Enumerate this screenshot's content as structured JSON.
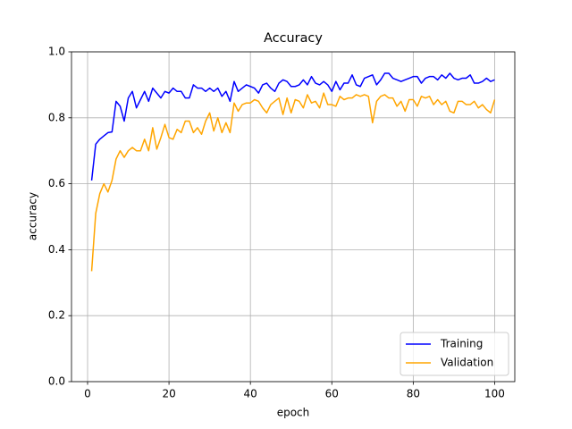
{
  "chart_data": {
    "type": "line",
    "title": "Accuracy",
    "xlabel": "epoch",
    "ylabel": "accuracy",
    "x": [
      1,
      2,
      3,
      4,
      5,
      6,
      7,
      8,
      9,
      10,
      11,
      12,
      13,
      14,
      15,
      16,
      17,
      18,
      19,
      20,
      21,
      22,
      23,
      24,
      25,
      26,
      27,
      28,
      29,
      30,
      31,
      32,
      33,
      34,
      35,
      36,
      37,
      38,
      39,
      40,
      41,
      42,
      43,
      44,
      45,
      46,
      47,
      48,
      49,
      50,
      51,
      52,
      53,
      54,
      55,
      56,
      57,
      58,
      59,
      60,
      61,
      62,
      63,
      64,
      65,
      66,
      67,
      68,
      69,
      70,
      71,
      72,
      73,
      74,
      75,
      76,
      77,
      78,
      79,
      80,
      81,
      82,
      83,
      84,
      85,
      86,
      87,
      88,
      89,
      90,
      91,
      92,
      93,
      94,
      95,
      96,
      97,
      98,
      99,
      100
    ],
    "series": [
      {
        "name": "Training",
        "color": "#0000ff",
        "values": [
          0.61,
          0.72,
          0.735,
          0.745,
          0.755,
          0.757,
          0.85,
          0.835,
          0.79,
          0.86,
          0.88,
          0.83,
          0.855,
          0.88,
          0.85,
          0.89,
          0.875,
          0.86,
          0.88,
          0.875,
          0.89,
          0.88,
          0.88,
          0.86,
          0.86,
          0.9,
          0.89,
          0.89,
          0.88,
          0.89,
          0.88,
          0.89,
          0.865,
          0.88,
          0.85,
          0.91,
          0.88,
          0.89,
          0.9,
          0.895,
          0.89,
          0.875,
          0.9,
          0.905,
          0.89,
          0.88,
          0.905,
          0.915,
          0.91,
          0.895,
          0.895,
          0.9,
          0.915,
          0.9,
          0.925,
          0.905,
          0.9,
          0.91,
          0.9,
          0.88,
          0.91,
          0.885,
          0.905,
          0.905,
          0.93,
          0.9,
          0.895,
          0.92,
          0.925,
          0.93,
          0.9,
          0.915,
          0.935,
          0.935,
          0.92,
          0.915,
          0.91,
          0.915,
          0.92,
          0.925,
          0.925,
          0.905,
          0.92,
          0.925,
          0.925,
          0.915,
          0.93,
          0.92,
          0.935,
          0.92,
          0.915,
          0.92,
          0.92,
          0.93,
          0.905,
          0.905,
          0.91,
          0.92,
          0.91,
          0.915
        ]
      },
      {
        "name": "Validation",
        "color": "#ffa500",
        "values": [
          0.335,
          0.51,
          0.57,
          0.6,
          0.575,
          0.61,
          0.675,
          0.7,
          0.68,
          0.7,
          0.71,
          0.7,
          0.7,
          0.735,
          0.7,
          0.77,
          0.705,
          0.74,
          0.78,
          0.74,
          0.735,
          0.765,
          0.755,
          0.79,
          0.79,
          0.755,
          0.77,
          0.75,
          0.79,
          0.815,
          0.76,
          0.8,
          0.755,
          0.785,
          0.755,
          0.845,
          0.82,
          0.84,
          0.845,
          0.845,
          0.855,
          0.85,
          0.83,
          0.815,
          0.84,
          0.85,
          0.86,
          0.81,
          0.86,
          0.815,
          0.855,
          0.85,
          0.83,
          0.87,
          0.845,
          0.85,
          0.83,
          0.875,
          0.84,
          0.84,
          0.835,
          0.865,
          0.855,
          0.86,
          0.86,
          0.87,
          0.865,
          0.87,
          0.865,
          0.785,
          0.85,
          0.865,
          0.87,
          0.86,
          0.86,
          0.835,
          0.85,
          0.82,
          0.855,
          0.855,
          0.835,
          0.865,
          0.86,
          0.865,
          0.84,
          0.855,
          0.84,
          0.85,
          0.82,
          0.815,
          0.85,
          0.85,
          0.84,
          0.84,
          0.85,
          0.83,
          0.84,
          0.825,
          0.815,
          0.855
        ]
      }
    ],
    "xlim": [
      -3.95,
      104.95
    ],
    "ylim": [
      0,
      1
    ],
    "xticks": [
      0,
      20,
      40,
      60,
      80,
      100
    ],
    "yticks": [
      {
        "value": 0,
        "label": "0.0"
      },
      0.2,
      0.4,
      0.6,
      0.8,
      {
        "value": 1,
        "label": "1.0"
      }
    ],
    "grid": true,
    "legend": "lower right"
  }
}
